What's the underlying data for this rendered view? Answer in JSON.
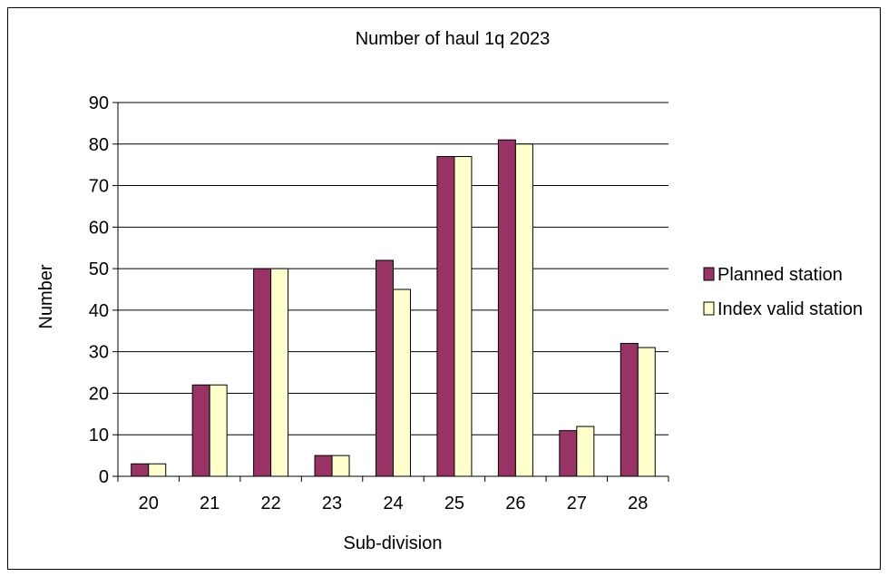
{
  "chart_data": {
    "type": "bar",
    "title": "Number of haul 1q 2023",
    "xlabel": "Sub-division",
    "ylabel": "Number",
    "categories": [
      "20",
      "21",
      "22",
      "23",
      "24",
      "25",
      "26",
      "27",
      "28"
    ],
    "series": [
      {
        "name": "Planned station",
        "values": [
          3,
          22,
          50,
          5,
          52,
          77,
          81,
          11,
          32
        ],
        "color": "#993366"
      },
      {
        "name": "Index valid station",
        "values": [
          3,
          22,
          50,
          5,
          45,
          77,
          80,
          12,
          31
        ],
        "color": "#ffffcc"
      }
    ],
    "ylim": [
      0,
      90
    ],
    "yticks": [
      0,
      10,
      20,
      30,
      40,
      50,
      60,
      70,
      80,
      90
    ],
    "grid": true,
    "legend_position": "right"
  }
}
